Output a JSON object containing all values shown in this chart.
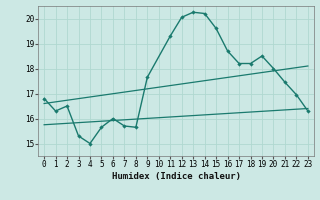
{
  "xlabel": "Humidex (Indice chaleur)",
  "bg_color": "#cce8e4",
  "line_color": "#1a7a6e",
  "grid_color": "#b0d8d0",
  "xlim": [
    -0.5,
    23.5
  ],
  "ylim": [
    14.5,
    20.5
  ],
  "xticks": [
    0,
    1,
    2,
    3,
    4,
    5,
    6,
    7,
    8,
    9,
    10,
    11,
    12,
    13,
    14,
    15,
    16,
    17,
    18,
    19,
    20,
    21,
    22,
    23
  ],
  "yticks": [
    15,
    16,
    17,
    18,
    19,
    20
  ],
  "line1_x": [
    0,
    1,
    2,
    3,
    4,
    5,
    6,
    7,
    8,
    9,
    11,
    12,
    13,
    14,
    15,
    16,
    17,
    18,
    19,
    20,
    21,
    22,
    23
  ],
  "line1_y": [
    16.8,
    16.3,
    16.5,
    15.3,
    15.0,
    15.65,
    16.0,
    15.7,
    15.65,
    17.65,
    19.3,
    20.05,
    20.25,
    20.2,
    19.6,
    18.7,
    18.2,
    18.2,
    18.5,
    18.0,
    17.45,
    16.95,
    16.3
  ],
  "line2_x": [
    0,
    23
  ],
  "line2_y": [
    16.6,
    18.1
  ],
  "line3_x": [
    0,
    23
  ],
  "line3_y": [
    15.75,
    16.4
  ]
}
